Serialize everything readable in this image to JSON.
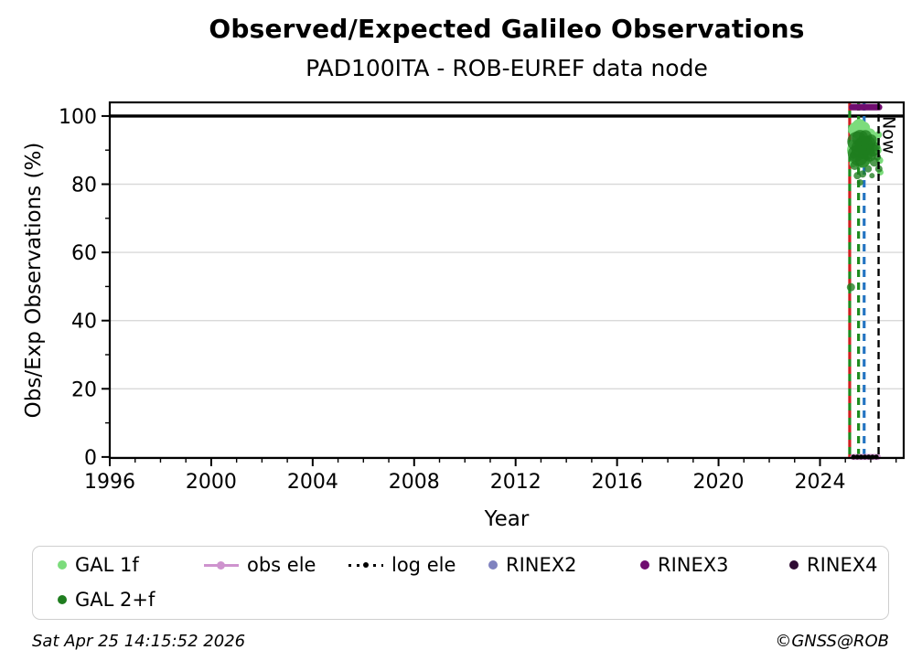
{
  "title": "Observed/Expected Galileo Observations",
  "subtitle": "PAD100ITA - ROB-EUREF data node",
  "footer": {
    "timestamp": "Sat Apr 25 14:15:52 2026",
    "credit": "©GNSS@ROB"
  },
  "legend": {
    "items": [
      {
        "label": "GAL 1f",
        "marker": "dot",
        "color": "#7cdc7c",
        "row": 0,
        "col": 0
      },
      {
        "label": "GAL 2+f",
        "marker": "dot",
        "color": "#1f7d1f",
        "row": 1,
        "col": 0
      },
      {
        "label": "obs ele",
        "marker": "line-dot",
        "color": "#ce93ce",
        "row": 0,
        "col": 1
      },
      {
        "label": "log ele",
        "marker": "dotted-line-dot",
        "color": "#000000",
        "row": 0,
        "col": 2
      },
      {
        "label": "RINEX2",
        "marker": "dot",
        "color": "#7f82bf",
        "row": 0,
        "col": 3
      },
      {
        "label": "RINEX3",
        "marker": "dot",
        "color": "#700d70",
        "row": 0,
        "col": 4
      },
      {
        "label": "RINEX4",
        "marker": "dot",
        "color": "#2e0b33",
        "row": 0,
        "col": 5
      }
    ]
  },
  "chart_data": {
    "type": "scatter",
    "title": "Observed/Expected Galileo Observations",
    "xlabel": "Year",
    "ylabel": "Obs/Exp Observations (%)",
    "xlim": [
      1996,
      2027.3
    ],
    "ylim": [
      -0.3,
      104.0
    ],
    "x_major_ticks": [
      1996,
      2000,
      2004,
      2008,
      2012,
      2016,
      2020,
      2024
    ],
    "x_minor_step": 1,
    "y_major_ticks": [
      0,
      20,
      40,
      60,
      80,
      100
    ],
    "y_minor_step": 10,
    "grid": {
      "horizontal": true,
      "color": "#d9d9d9"
    },
    "expected_line": {
      "y": 100,
      "color": "#000000"
    },
    "event_lines": [
      {
        "name": "event-red",
        "x": 2025.17,
        "color": "#cf2020",
        "dash": "8 8",
        "offset": 0
      },
      {
        "name": "event-green-overlap",
        "x": 2025.17,
        "color": "#1e8c1e",
        "dash": "8 8",
        "offset": 8
      },
      {
        "name": "event-green",
        "x": 2025.52,
        "color": "#1e8c1e",
        "dash": "8 6",
        "offset": 0
      },
      {
        "name": "event-blue",
        "x": 2025.74,
        "color": "#2474c2",
        "dash": "8 6",
        "offset": 0
      }
    ],
    "now_line": {
      "x": 2026.31,
      "label": "Now",
      "color": "#000000",
      "dash": "8 5"
    },
    "series": [
      {
        "name": "GAL 1f",
        "type": "scatter",
        "color": "#7cdc7c",
        "opacity": 1,
        "points": [
          [
            2025.35,
            91.5,
            6
          ],
          [
            2025.45,
            96,
            9
          ],
          [
            2025.55,
            97,
            8
          ],
          [
            2025.62,
            95.5,
            10
          ],
          [
            2025.72,
            96.5,
            7
          ],
          [
            2025.5,
            90,
            12
          ],
          [
            2025.62,
            88,
            12
          ],
          [
            2025.75,
            90.5,
            11
          ],
          [
            2025.85,
            92.5,
            10
          ],
          [
            2025.95,
            94.5,
            7
          ],
          [
            2026.05,
            91.5,
            8
          ],
          [
            2026.15,
            93,
            6
          ],
          [
            2026.25,
            90,
            5
          ],
          [
            2026.3,
            94.5,
            4
          ],
          [
            2026.35,
            87,
            4
          ],
          [
            2026.38,
            83.5,
            3.5
          ],
          [
            2025.3,
            86,
            4
          ]
        ]
      },
      {
        "name": "GAL 2+f",
        "type": "scatter",
        "color": "#1f7d1f",
        "opacity": 0.78,
        "points": [
          [
            2025.22,
            49.8,
            4.5
          ],
          [
            2025.32,
            88.5,
            4
          ],
          [
            2025.37,
            85.5,
            5
          ],
          [
            2025.42,
            89,
            9
          ],
          [
            2025.47,
            92.5,
            11
          ],
          [
            2025.47,
            82.5,
            4
          ],
          [
            2025.53,
            88,
            10
          ],
          [
            2025.58,
            93.5,
            9
          ],
          [
            2025.58,
            80.5,
            3.5
          ],
          [
            2025.63,
            90.5,
            11
          ],
          [
            2025.68,
            87,
            8
          ],
          [
            2025.68,
            83,
            4
          ],
          [
            2025.73,
            91.5,
            10
          ],
          [
            2025.79,
            94,
            7
          ],
          [
            2025.84,
            89.5,
            9
          ],
          [
            2025.9,
            92,
            8
          ],
          [
            2025.9,
            84.5,
            4
          ],
          [
            2025.96,
            88.5,
            7
          ],
          [
            2026.02,
            93,
            6
          ],
          [
            2026.05,
            82.5,
            3
          ],
          [
            2026.08,
            90,
            7
          ],
          [
            2026.14,
            86.5,
            5
          ],
          [
            2026.2,
            91,
            5
          ],
          [
            2026.26,
            88,
            4
          ],
          [
            2026.32,
            84.5,
            4
          ]
        ]
      },
      {
        "name": "RINEX3",
        "type": "band",
        "color": "#700d70",
        "y": 102.6,
        "x_from": 2025.27,
        "x_to": 2026.33,
        "width": 7
      },
      {
        "name": "obs ele",
        "type": "band",
        "color": "#ce93ce",
        "y": 0,
        "x_from": 2025.3,
        "x_to": 2026.28,
        "width": 6.5
      },
      {
        "name": "log ele",
        "type": "dots",
        "color": "#000000",
        "y": 0,
        "r": 2.6,
        "x_values": [
          2025.32,
          2025.47,
          2025.62,
          2025.77,
          2025.92,
          2026.07,
          2026.22
        ]
      }
    ]
  }
}
